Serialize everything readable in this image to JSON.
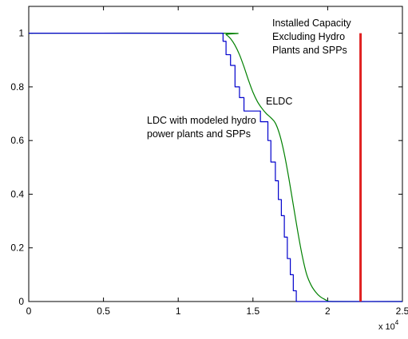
{
  "chart_data": {
    "type": "line",
    "title": "",
    "xlabel": "",
    "ylabel": "",
    "xlim": [
      0,
      25000
    ],
    "ylim": [
      0,
      1.1
    ],
    "x_ticks": [
      0,
      5000,
      10000,
      15000,
      20000,
      25000
    ],
    "x_tick_labels": [
      "0",
      "0.5",
      "1",
      "1.5",
      "2",
      "2.5"
    ],
    "x_exponent_base": "x 10",
    "x_exponent_power": "4",
    "y_ticks": [
      0,
      0.2,
      0.4,
      0.6,
      0.8,
      1
    ],
    "y_tick_labels": [
      "0",
      "0.2",
      "0.4",
      "0.6",
      "0.8",
      "1"
    ],
    "grid": false,
    "annotations": [
      {
        "id": "eldc",
        "lines": [
          "ELDC"
        ]
      },
      {
        "id": "ldc",
        "lines": [
          "LDC with modeled hydro",
          "power plants and SPPs"
        ]
      },
      {
        "id": "capacity",
        "lines": [
          "Installed Capacity",
          "Excluding Hydro",
          "Plants and SPPs"
        ]
      }
    ],
    "series": [
      {
        "id": "eldc",
        "color": "#008000",
        "style": "smooth",
        "x": [
          0,
          13000,
          13200,
          13500,
          13800,
          14100,
          14400,
          14700,
          15000,
          15300,
          15600,
          15900,
          16200,
          16500,
          16800,
          17100,
          17400,
          17700,
          18000,
          18300,
          18600,
          18900,
          19200,
          19500,
          19800,
          20000,
          20500,
          25000
        ],
        "y": [
          1.0,
          1.0,
          0.995,
          0.98,
          0.955,
          0.92,
          0.875,
          0.825,
          0.78,
          0.745,
          0.72,
          0.7,
          0.685,
          0.665,
          0.62,
          0.55,
          0.46,
          0.36,
          0.26,
          0.17,
          0.1,
          0.06,
          0.035,
          0.018,
          0.008,
          0.003,
          0.0,
          0.0
        ]
      },
      {
        "id": "ldc",
        "color": "#0000cc",
        "style": "step",
        "x": [
          0,
          13000,
          13000,
          13200,
          13200,
          13500,
          13500,
          13800,
          13800,
          14100,
          14100,
          14400,
          14400,
          15500,
          15500,
          16000,
          16000,
          16200,
          16200,
          16500,
          16500,
          16700,
          16700,
          16900,
          16900,
          17100,
          17100,
          17300,
          17300,
          17500,
          17500,
          17700,
          17700,
          17900,
          17900,
          25000
        ],
        "y": [
          1.0,
          1.0,
          0.97,
          0.97,
          0.92,
          0.92,
          0.88,
          0.88,
          0.8,
          0.8,
          0.76,
          0.76,
          0.71,
          0.71,
          0.67,
          0.67,
          0.6,
          0.6,
          0.52,
          0.52,
          0.45,
          0.45,
          0.38,
          0.38,
          0.32,
          0.32,
          0.24,
          0.24,
          0.16,
          0.16,
          0.1,
          0.1,
          0.04,
          0.04,
          0.0,
          0.0
        ]
      },
      {
        "id": "capacity",
        "color": "#e02020",
        "style": "vertical",
        "x": [
          22200,
          22200
        ],
        "y": [
          0,
          1.0
        ]
      }
    ]
  }
}
